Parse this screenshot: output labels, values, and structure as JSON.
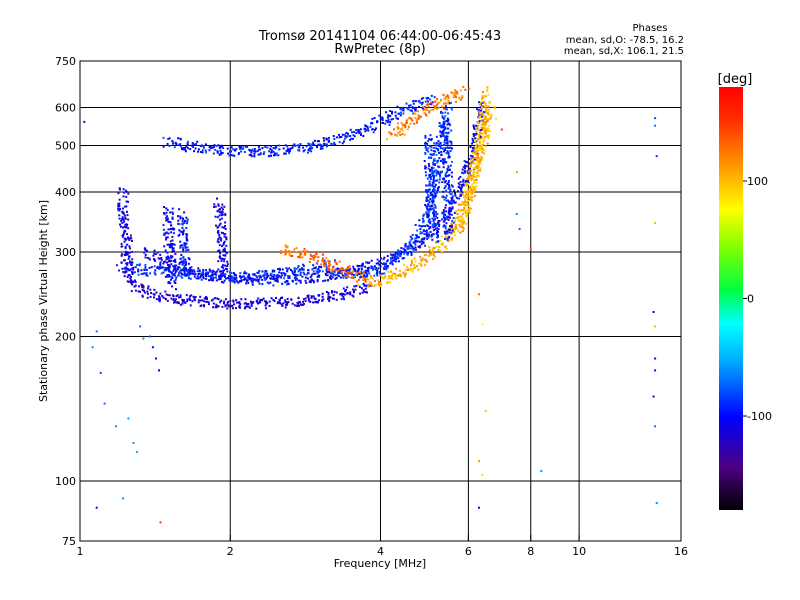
{
  "chart_data": {
    "type": "scatter",
    "title": "Tromsø 20141104 06:44:00-06:45:43",
    "subtitle": "RwPretec (8p)",
    "stats": {
      "heading": "Phases",
      "o_line": "mean, sd,O: -78.5, 16.2",
      "x_line": "mean, sd,X: 106.1, 21.5"
    },
    "xlabel": "Frequency [MHz]",
    "ylabel": "Stationary phase Virtual Height [km]",
    "x_scale": "log",
    "y_scale": "log",
    "xlim": [
      1,
      16
    ],
    "ylim": [
      75,
      750
    ],
    "x_ticks": [
      1,
      2,
      4,
      6,
      8,
      10,
      16
    ],
    "y_ticks": [
      75,
      100,
      200,
      300,
      400,
      500,
      600,
      750
    ],
    "grid": true,
    "colorbar": {
      "label": "[deg]",
      "range": [
        -180,
        180
      ],
      "ticks": [
        100,
        0,
        -100
      ],
      "colormap": "rainbow"
    },
    "traces": [
      {
        "phase": -95,
        "points": [
          [
            1.5,
            510
          ],
          [
            1.62,
            500
          ],
          [
            1.75,
            495
          ],
          [
            1.9,
            490
          ],
          [
            2.05,
            487
          ],
          [
            2.25,
            485
          ],
          [
            2.5,
            488
          ],
          [
            2.8,
            495
          ],
          [
            3.1,
            505
          ],
          [
            3.4,
            520
          ],
          [
            3.7,
            540
          ],
          [
            4.0,
            560
          ],
          [
            4.3,
            580
          ],
          [
            4.6,
            600
          ],
          [
            4.9,
            615
          ],
          [
            5.1,
            625
          ]
        ]
      },
      {
        "phase": -115,
        "points": [
          [
            1.25,
            260
          ],
          [
            1.3,
            252
          ],
          [
            1.4,
            245
          ],
          [
            1.55,
            240
          ],
          [
            1.75,
            236
          ],
          [
            2.0,
            234
          ],
          [
            2.3,
            234
          ],
          [
            2.7,
            236
          ],
          [
            3.1,
            242
          ],
          [
            3.5,
            248
          ],
          [
            3.8,
            255
          ]
        ]
      },
      {
        "phase": -105,
        "points": [
          [
            1.35,
            300
          ],
          [
            1.5,
            285
          ],
          [
            1.7,
            272
          ],
          [
            1.95,
            265
          ],
          [
            2.2,
            262
          ],
          [
            2.5,
            262
          ],
          [
            2.9,
            265
          ],
          [
            3.3,
            270
          ],
          [
            3.6,
            275
          ],
          [
            4.0,
            285
          ],
          [
            4.3,
            295
          ],
          [
            4.6,
            305
          ],
          [
            4.9,
            320
          ],
          [
            5.2,
            340
          ],
          [
            5.5,
            370
          ],
          [
            5.8,
            410
          ],
          [
            6.0,
            450
          ],
          [
            6.2,
            500
          ],
          [
            6.3,
            560
          ],
          [
            6.4,
            620
          ]
        ]
      },
      {
        "phase": -90,
        "points": [
          [
            1.2,
            280
          ],
          [
            1.35,
            275
          ],
          [
            1.55,
            272
          ],
          [
            1.8,
            268
          ],
          [
            2.1,
            266
          ],
          [
            2.4,
            268
          ],
          [
            2.8,
            275
          ],
          [
            3.2,
            282
          ]
        ]
      },
      {
        "phase": -85,
        "points": [
          [
            3.2,
            272
          ],
          [
            3.6,
            270
          ],
          [
            4.0,
            275
          ],
          [
            4.3,
            290
          ],
          [
            4.6,
            310
          ],
          [
            4.8,
            330
          ],
          [
            5.0,
            360
          ],
          [
            5.1,
            400
          ],
          [
            5.2,
            450
          ],
          [
            5.3,
            500
          ],
          [
            5.4,
            560
          ],
          [
            5.45,
            610
          ]
        ]
      },
      {
        "phase": 105,
        "points": [
          [
            3.7,
            258
          ],
          [
            4.0,
            262
          ],
          [
            4.3,
            268
          ],
          [
            4.6,
            278
          ],
          [
            4.9,
            290
          ],
          [
            5.2,
            305
          ],
          [
            5.5,
            325
          ],
          [
            5.75,
            350
          ],
          [
            5.95,
            380
          ],
          [
            6.1,
            420
          ],
          [
            6.25,
            470
          ],
          [
            6.35,
            530
          ],
          [
            6.45,
            600
          ],
          [
            6.5,
            650
          ]
        ]
      },
      {
        "phase": 130,
        "points": [
          [
            2.55,
            305
          ],
          [
            2.7,
            300
          ],
          [
            2.85,
            295
          ],
          [
            3.0,
            290
          ],
          [
            3.15,
            284
          ],
          [
            3.3,
            278
          ],
          [
            3.45,
            272
          ],
          [
            3.6,
            268
          ],
          [
            3.75,
            265
          ]
        ]
      },
      {
        "phase": 120,
        "points": [
          [
            4.2,
            520
          ],
          [
            4.4,
            540
          ],
          [
            4.6,
            560
          ],
          [
            4.8,
            580
          ],
          [
            5.0,
            595
          ],
          [
            5.2,
            605
          ],
          [
            5.4,
            620
          ],
          [
            5.7,
            640
          ],
          [
            5.9,
            650
          ]
        ]
      },
      {
        "phase": 100,
        "points": [
          [
            5.7,
            330
          ],
          [
            5.85,
            360
          ],
          [
            6.0,
            390
          ],
          [
            6.15,
            430
          ],
          [
            6.3,
            480
          ],
          [
            6.5,
            540
          ],
          [
            6.7,
            590
          ]
        ]
      },
      {
        "phase": -110,
        "points": [
          [
            1.22,
            400
          ],
          [
            1.22,
            380
          ],
          [
            1.23,
            360
          ],
          [
            1.23,
            340
          ],
          [
            1.24,
            320
          ],
          [
            1.24,
            300
          ],
          [
            1.25,
            280
          ],
          [
            1.25,
            265
          ]
        ]
      },
      {
        "phase": -105,
        "points": [
          [
            1.5,
            370
          ],
          [
            1.5,
            350
          ],
          [
            1.51,
            330
          ],
          [
            1.51,
            310
          ],
          [
            1.52,
            290
          ],
          [
            1.52,
            270
          ],
          [
            1.53,
            255
          ]
        ]
      },
      {
        "phase": -100,
        "points": [
          [
            1.6,
            360
          ],
          [
            1.61,
            340
          ],
          [
            1.61,
            320
          ],
          [
            1.62,
            300
          ],
          [
            1.62,
            280
          ],
          [
            1.63,
            262
          ]
        ]
      },
      {
        "phase": -110,
        "points": [
          [
            1.9,
            380
          ],
          [
            1.91,
            350
          ],
          [
            1.92,
            320
          ],
          [
            1.93,
            295
          ],
          [
            1.94,
            272
          ]
        ]
      },
      {
        "phase": -90,
        "points": [
          [
            5.0,
            520
          ],
          [
            5.02,
            470
          ],
          [
            5.04,
            430
          ],
          [
            5.06,
            390
          ],
          [
            5.08,
            350
          ],
          [
            5.1,
            315
          ]
        ]
      },
      {
        "phase": -95,
        "points": [
          [
            5.4,
            560
          ],
          [
            5.42,
            500
          ],
          [
            5.44,
            450
          ],
          [
            5.46,
            400
          ],
          [
            5.48,
            350
          ],
          [
            5.5,
            320
          ]
        ]
      }
    ],
    "scatter": [
      {
        "x": 1.02,
        "y": 560,
        "phase": -110
      },
      {
        "x": 1.08,
        "y": 205,
        "phase": -70
      },
      {
        "x": 1.06,
        "y": 190,
        "phase": -60
      },
      {
        "x": 1.1,
        "y": 168,
        "phase": -80
      },
      {
        "x": 1.12,
        "y": 145,
        "phase": -70
      },
      {
        "x": 1.18,
        "y": 130,
        "phase": -60
      },
      {
        "x": 1.25,
        "y": 135,
        "phase": -60
      },
      {
        "x": 1.28,
        "y": 120,
        "phase": -60
      },
      {
        "x": 1.3,
        "y": 115,
        "phase": -55
      },
      {
        "x": 1.32,
        "y": 210,
        "phase": -70
      },
      {
        "x": 1.34,
        "y": 198,
        "phase": -60
      },
      {
        "x": 1.38,
        "y": 200,
        "phase": -75
      },
      {
        "x": 1.08,
        "y": 88,
        "phase": -120
      },
      {
        "x": 1.22,
        "y": 92,
        "phase": -60
      },
      {
        "x": 1.45,
        "y": 82,
        "phase": 150
      },
      {
        "x": 1.4,
        "y": 190,
        "phase": -100
      },
      {
        "x": 1.42,
        "y": 180,
        "phase": -110
      },
      {
        "x": 1.44,
        "y": 170,
        "phase": -105
      },
      {
        "x": 6.3,
        "y": 245,
        "phase": 130
      },
      {
        "x": 6.4,
        "y": 212,
        "phase": 80
      },
      {
        "x": 6.5,
        "y": 140,
        "phase": 100
      },
      {
        "x": 6.3,
        "y": 110,
        "phase": 110
      },
      {
        "x": 6.4,
        "y": 103,
        "phase": 90
      },
      {
        "x": 6.3,
        "y": 88,
        "phase": -120
      },
      {
        "x": 7.0,
        "y": 540,
        "phase": 150
      },
      {
        "x": 7.5,
        "y": 440,
        "phase": 110
      },
      {
        "x": 7.5,
        "y": 360,
        "phase": -60
      },
      {
        "x": 7.6,
        "y": 335,
        "phase": -70
      },
      {
        "x": 8.0,
        "y": 305,
        "phase": 140
      },
      {
        "x": 8.4,
        "y": 105,
        "phase": -60
      },
      {
        "x": 14.2,
        "y": 570,
        "phase": -80
      },
      {
        "x": 14.2,
        "y": 550,
        "phase": -70
      },
      {
        "x": 14.3,
        "y": 475,
        "phase": -90
      },
      {
        "x": 14.2,
        "y": 345,
        "phase": 100
      },
      {
        "x": 14.1,
        "y": 225,
        "phase": -120
      },
      {
        "x": 14.2,
        "y": 210,
        "phase": 100
      },
      {
        "x": 14.2,
        "y": 180,
        "phase": -100
      },
      {
        "x": 14.2,
        "y": 170,
        "phase": -120
      },
      {
        "x": 14.1,
        "y": 150,
        "phase": -130
      },
      {
        "x": 14.2,
        "y": 130,
        "phase": -70
      },
      {
        "x": 14.3,
        "y": 90,
        "phase": -60
      }
    ]
  }
}
